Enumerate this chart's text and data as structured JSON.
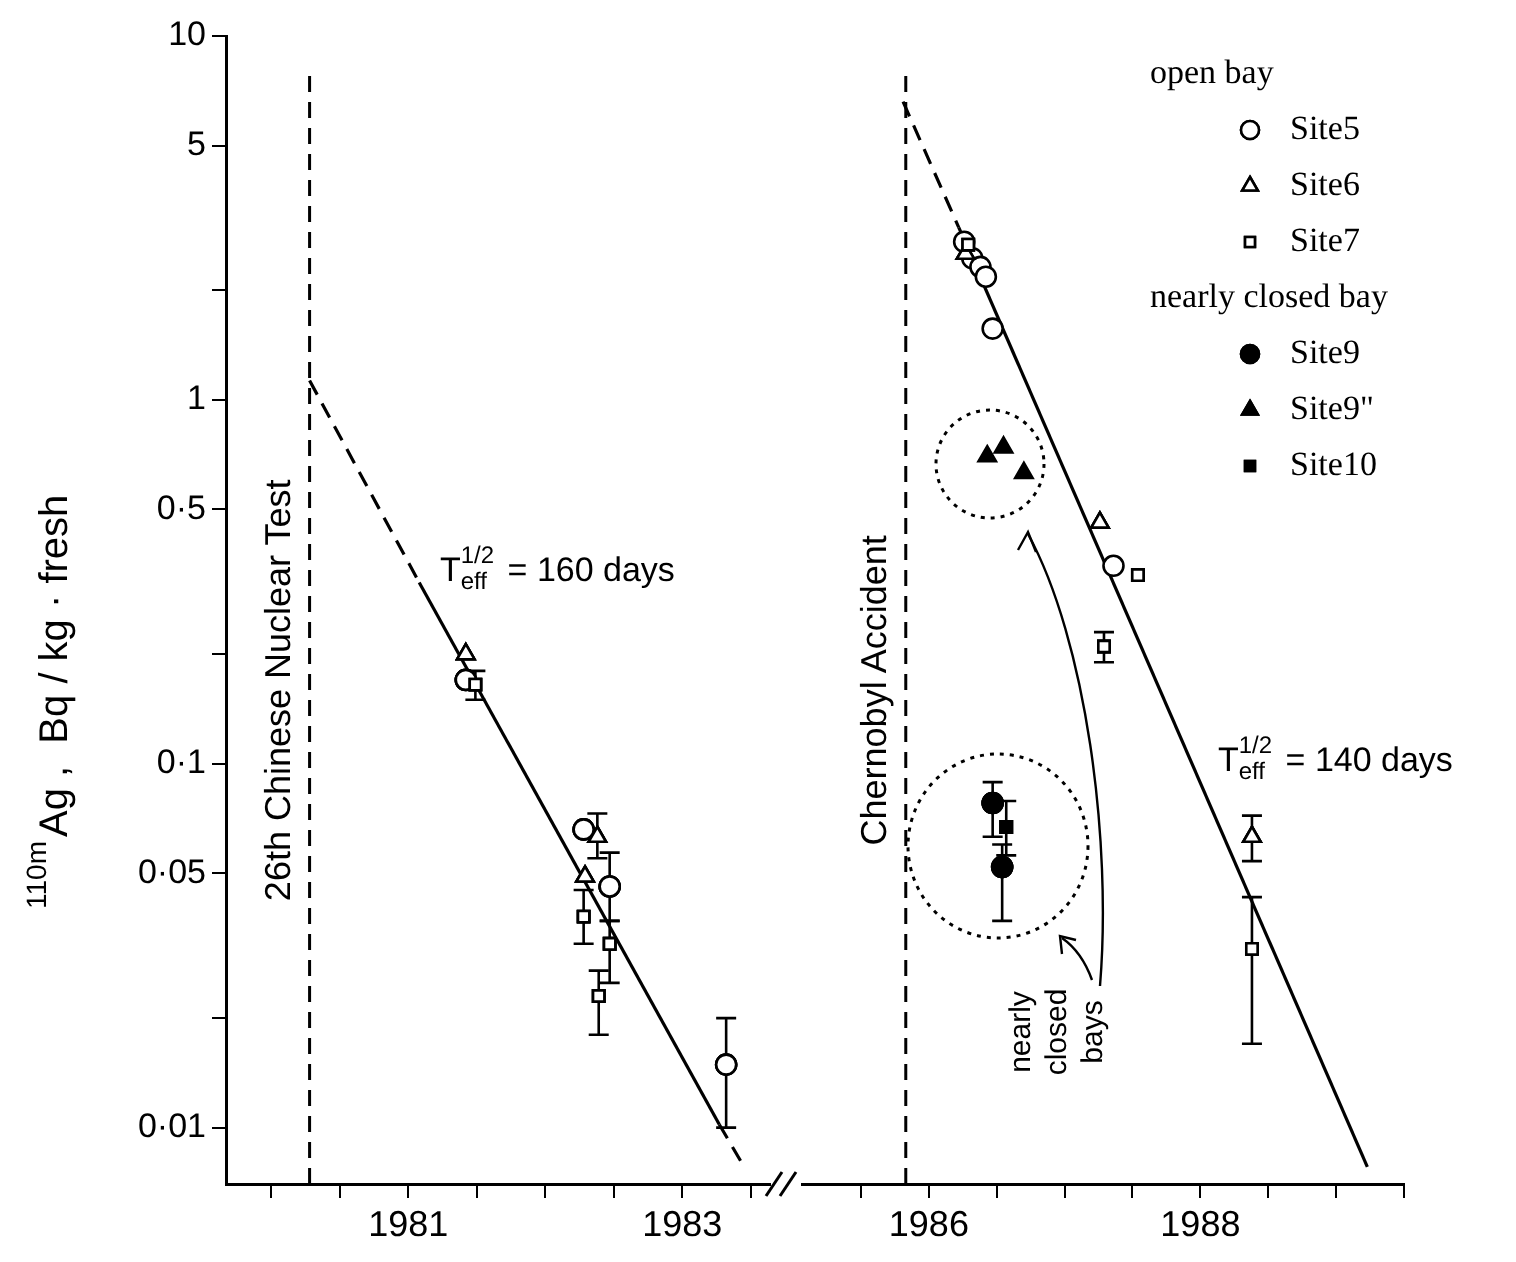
{
  "chart_data": [
    {
      "type": "scatter",
      "ylabel": "$^{110m}$Ag ,  Bq / kg · fresh",
      "log": true,
      "legend": false,
      "tick_labels": "xy",
      "xlim": [
        1980.17,
        1984.14
      ],
      "ylim": [
        0.007,
        10
      ],
      "xticks": [
        {
          "value": 1980.5,
          "label": null
        },
        {
          "value": 1981,
          "label": null
        },
        {
          "value": 1981.5,
          "label": "1981"
        },
        {
          "value": 1982,
          "label": null
        },
        {
          "value": 1982.5,
          "label": null
        },
        {
          "value": 1983,
          "label": null
        },
        {
          "value": 1983.5,
          "label": "1983"
        },
        {
          "value": 1984,
          "label": null
        }
      ],
      "yticks": [
        10,
        5,
        {
          "value": 2,
          "label": null
        },
        1,
        {
          "value": 0.5,
          "label": "0·5"
        },
        {
          "value": 0.2,
          "label": null
        },
        {
          "value": 0.1,
          "label": "0·1"
        },
        {
          "value": 0.05,
          "label": "0·05"
        },
        {
          "value": 0.02,
          "label": null
        },
        {
          "value": 0.01,
          "label": "0·01"
        }
      ],
      "ref_lines": [
        {
          "axis": "x",
          "value": 1980.78,
          "label": "26th Chinese Nuclear Test",
          "line_style": "dashed"
        }
      ],
      "annotations": [
        "T$_{eff}$$^{1/2}$ = 160 days"
      ],
      "series": [
        {
          "color": "#000000",
          "marker": "circle",
          "x": [
            1981.92,
            1982.78,
            1982.97,
            1983.82
          ],
          "values": [
            0.17,
            0.066,
            0.046,
            0.0149
          ],
          "errors": [
            null,
            null,
            [
              0.037,
              0.057
            ],
            [
              0.01,
              0.02
            ]
          ]
        },
        {
          "color": "#000000",
          "marker": "triangle",
          "x": [
            1981.92,
            1982.88,
            1982.79
          ],
          "values": [
            0.2,
            0.063,
            0.049
          ],
          "errors": [
            null,
            [
              0.055,
              0.073
            ],
            null
          ]
        },
        {
          "color": "#000000",
          "marker": "square",
          "x": [
            1981.99,
            1982.78,
            1982.97,
            1982.89
          ],
          "values": [
            0.165,
            0.038,
            0.032,
            0.023
          ],
          "errors": [
            [
              0.15,
              0.18
            ],
            [
              0.032,
              0.045
            ],
            [
              0.025,
              0.037
            ],
            [
              0.018,
              0.027
            ]
          ]
        },
        {
          "type": "line",
          "color": "#000000",
          "marker": "none",
          "line_style": "dashed",
          "x": [
            1980.78,
            1981.58
          ],
          "values": [
            1.13,
            0.315
          ]
        },
        {
          "type": "line",
          "color": "#000000",
          "marker": "none",
          "line_style": "solid",
          "x": [
            1981.58,
            1983.77
          ],
          "values": [
            0.315,
            0.0102
          ]
        },
        {
          "type": "line",
          "color": "#000000",
          "marker": "none",
          "line_style": "dashed",
          "x": [
            1983.77,
            1983.96
          ],
          "values": [
            0.0102,
            0.0077
          ]
        }
      ]
    },
    {
      "type": "scatter",
      "log": true,
      "legend": "top right",
      "tick_labels": "x",
      "xlim": [
        1985.57,
        1990.0
      ],
      "ylim": [
        0.007,
        10
      ],
      "xticks": [
        {
          "value": 1986,
          "label": null
        },
        {
          "value": 1986.5,
          "label": "1986"
        },
        {
          "value": 1987,
          "label": null
        },
        {
          "value": 1987.5,
          "label": null
        },
        {
          "value": 1988,
          "label": null
        },
        {
          "value": 1988.5,
          "label": "1988"
        },
        {
          "value": 1989,
          "label": null
        },
        {
          "value": 1989.5,
          "label": null
        },
        {
          "value": 1990,
          "label": null
        }
      ],
      "ref_lines": [
        {
          "axis": "x",
          "value": 1986.33,
          "label": "Chernobyl Accident",
          "line_style": "dashed"
        }
      ],
      "annotations": [
        "open bay",
        "nearly closed bay",
        "T$_{eff}$$^{1/2}$ = 140 days",
        "nearly closed bays"
      ],
      "series": [
        {
          "name": "Site5",
          "color": "#000000",
          "marker": "circle",
          "x": [
            1986.76,
            1986.82,
            1986.88,
            1986.92,
            1986.97,
            1987.86
          ],
          "values": [
            2.72,
            2.45,
            2.32,
            2.18,
            1.57,
            0.35
          ]
        },
        {
          "name": "Site6",
          "color": "#000000",
          "marker": "triangle",
          "x": [
            1986.77,
            1987.76,
            1988.88
          ],
          "values": [
            2.52,
            0.46,
            0.063
          ],
          "errors": [
            null,
            null,
            [
              0.054,
              0.072
            ]
          ]
        },
        {
          "name": "Site7",
          "color": "#000000",
          "marker": "square",
          "x": [
            1986.79,
            1987.79,
            1988.04,
            1988.88
          ],
          "values": [
            2.67,
            0.21,
            0.33,
            0.031
          ],
          "errors": [
            null,
            [
              0.19,
              0.23
            ],
            null,
            [
              0.017,
              0.043
            ]
          ]
        },
        {
          "name": "Site9",
          "color": "#000000",
          "marker": "circle",
          "x": [
            1986.97,
            1987.04
          ],
          "values": [
            0.078,
            0.052
          ],
          "errors": [
            [
              0.063,
              0.089
            ],
            [
              0.037,
              0.06
            ]
          ]
        },
        {
          "name": "Site9\"",
          "color": "#000000",
          "marker": "triangle",
          "x": [
            1986.93,
            1987.05,
            1987.2
          ],
          "values": [
            0.7,
            0.74,
            0.63
          ]
        },
        {
          "name": "Site10",
          "color": "#000000",
          "marker": "square",
          "x": [
            1987.07
          ],
          "values": [
            0.067
          ],
          "errors": [
            [
              0.056,
              0.079
            ]
          ]
        },
        {
          "type": "line",
          "color": "#000000",
          "marker": "none",
          "line_style": "dashed",
          "x": [
            1986.31,
            1986.72
          ],
          "values": [
            6.6,
            2.98
          ]
        },
        {
          "type": "line",
          "color": "#000000",
          "marker": "none",
          "line_style": "solid",
          "x": [
            1986.72,
            1989.73
          ],
          "values": [
            2.98,
            0.0078
          ]
        }
      ]
    }
  ]
}
